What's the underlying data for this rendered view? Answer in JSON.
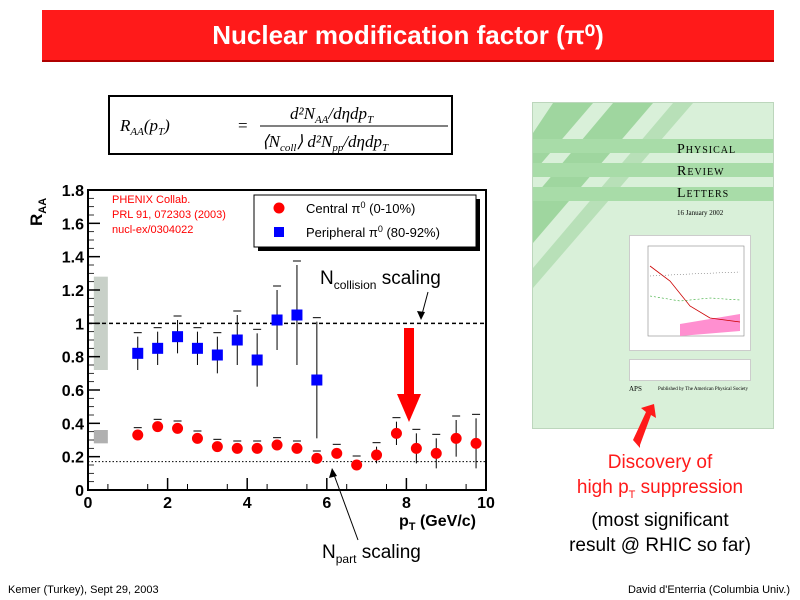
{
  "slide": {
    "title": "Nuclear modification factor (π⁰)",
    "footer_left": "Kemer (Turkey), Sept 29, 2003",
    "footer_right": "David d'Enterria (Columbia Univ.)"
  },
  "formula": {
    "lhs": "R",
    "lhs_sub": "AA",
    "lhs_arg": "(p",
    "lhs_arg_sub": "T",
    "lhs_close": ")",
    "eq": "=",
    "num": "d²N",
    "num_sub": "AA",
    "num_rest": "/dηdp",
    "num_rest_sub": "T",
    "den_a": "⟨N",
    "den_a_sub": "coll",
    "den_b": "⟩ d²N",
    "den_b_sub": "pp",
    "den_c": "/dηdp",
    "den_c_sub": "T"
  },
  "cover": {
    "journal_l1": "Physical",
    "journal_l2": "Review",
    "journal_l3": "Letters",
    "date": "16 January 2002",
    "aps": "APS",
    "publisher": "Published by The American Physical Society"
  },
  "discovery": {
    "line1": "Discovery of",
    "line2": "high p",
    "line2_sub": "T",
    "line2_rest": " suppression",
    "line3": "(most significant",
    "line4": "result @ RHIC so far)"
  },
  "chart_data": {
    "type": "scatter",
    "xlabel": "p",
    "xlabel_sub": "T",
    "xlabel_rest": " (GeV/c)",
    "ylabel": "R",
    "ylabel_sub": "AA",
    "xlim": [
      0,
      10
    ],
    "ylim": [
      0,
      1.8
    ],
    "xticks": [
      0,
      2,
      4,
      6,
      8,
      10
    ],
    "yticks": [
      0,
      0.2,
      0.4,
      0.6,
      0.8,
      1,
      1.2,
      1.4,
      1.6,
      1.8
    ],
    "ytick_labels": [
      "0",
      "0.2",
      "0.4",
      "0.6",
      "0.8",
      "1",
      "1.2",
      "1.4",
      "1.6",
      "1.8"
    ],
    "collab_text": [
      "PHENIX Collab.",
      "PRL 91, 072303  (2003)",
      "nucl-ex/0304022"
    ],
    "ncoll_label": "N",
    "ncoll_sub": "collision",
    "ncoll_rest": " scaling",
    "npart_label": "N",
    "npart_sub": "part",
    "npart_rest": " scaling",
    "ncoll_level": 1.0,
    "npart_level": 0.17,
    "series": [
      {
        "name": "Central π⁰ (0-10%)",
        "legend_text": "Central π",
        "legend_sup": "0",
        "legend_rest": " (0-10%)",
        "color": "#ff0000",
        "marker": "circle",
        "x": [
          1.25,
          1.75,
          2.25,
          2.75,
          3.25,
          3.75,
          4.25,
          4.75,
          5.25,
          5.75,
          6.25,
          6.75,
          7.25,
          7.75,
          8.25,
          8.75,
          9.25,
          9.75
        ],
        "y": [
          0.33,
          0.38,
          0.37,
          0.31,
          0.26,
          0.25,
          0.25,
          0.27,
          0.25,
          0.19,
          0.22,
          0.15,
          0.21,
          0.34,
          0.25,
          0.22,
          0.31,
          0.28
        ],
        "yerr": [
          0.02,
          0.02,
          0.02,
          0.02,
          0.02,
          0.02,
          0.02,
          0.02,
          0.02,
          0.02,
          0.03,
          0.03,
          0.05,
          0.07,
          0.09,
          0.09,
          0.11,
          0.15
        ]
      },
      {
        "name": "Peripheral π⁰ (80-92%)",
        "legend_text": "Peripheral π",
        "legend_sup": "0",
        "legend_rest": " (80-92%)",
        "color": "#0000ff",
        "marker": "square",
        "x": [
          1.25,
          1.75,
          2.25,
          2.75,
          3.25,
          3.75,
          4.25,
          4.75,
          5.25,
          5.75
        ],
        "y": [
          0.82,
          0.85,
          0.92,
          0.85,
          0.81,
          0.9,
          0.78,
          1.02,
          1.05,
          0.66
        ],
        "yerr": [
          0.1,
          0.1,
          0.1,
          0.1,
          0.11,
          0.15,
          0.16,
          0.18,
          0.3,
          0.35
        ]
      }
    ],
    "syst_boxes": [
      {
        "x": 0.75,
        "y_low": 0.72,
        "y_high": 1.28,
        "color": "#c8d0c8"
      },
      {
        "x": 0.75,
        "y_low": 0.28,
        "y_high": 0.36,
        "color": "#b0b0b0"
      }
    ]
  }
}
